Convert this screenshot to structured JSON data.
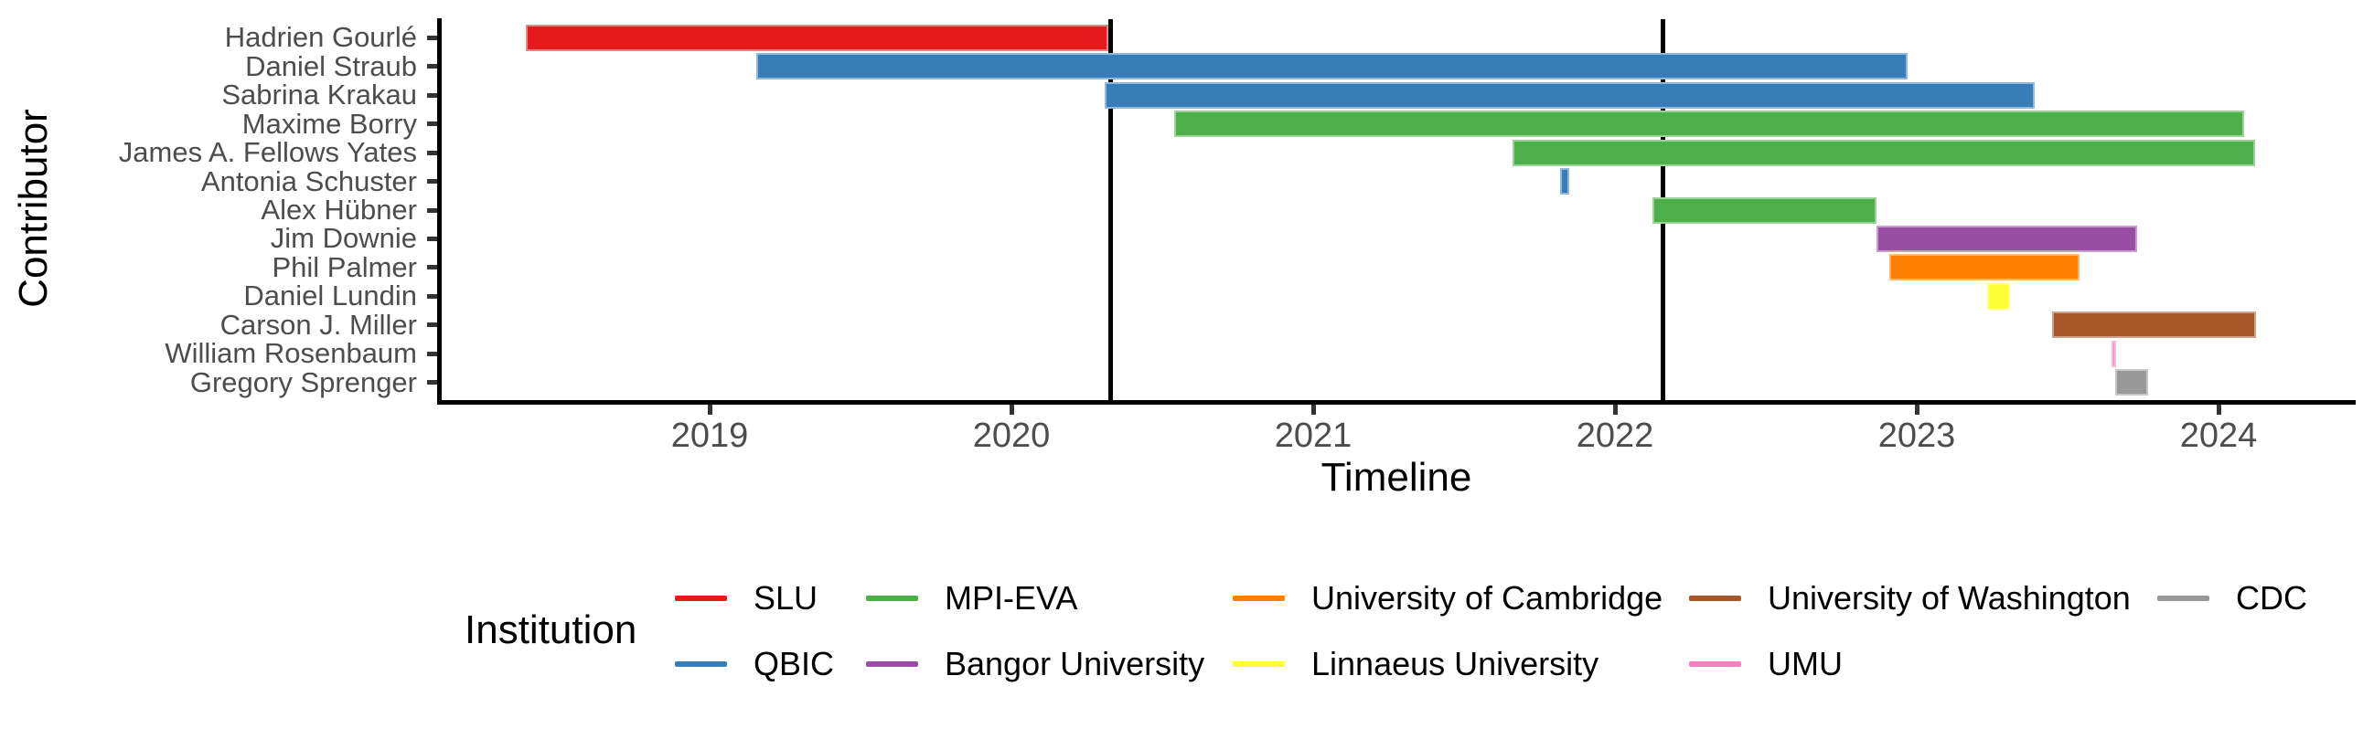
{
  "chart_data": {
    "type": "bar",
    "subtype": "gantt",
    "title": "",
    "xlabel": "Timeline",
    "ylabel": "Contributor",
    "legend_title": "Institution",
    "x_ticks": [
      2019,
      2020,
      2021,
      2022,
      2023,
      2024
    ],
    "x_range": [
      2018.1,
      2024.45
    ],
    "grid": false,
    "legend_position": "bottom",
    "event_lines": [
      2020.33,
      2022.16
    ],
    "institutions": [
      {
        "name": "SLU",
        "color": "#E41A1C"
      },
      {
        "name": "QBIC",
        "color": "#377EB8"
      },
      {
        "name": "MPI-EVA",
        "color": "#4DAF4A"
      },
      {
        "name": "Bangor University",
        "color": "#984EA3"
      },
      {
        "name": "University of Cambridge",
        "color": "#FF7F00"
      },
      {
        "name": "Linnaeus University",
        "color": "#FFFF33"
      },
      {
        "name": "University of Washington",
        "color": "#A65628"
      },
      {
        "name": "UMU",
        "color": "#F781BF"
      },
      {
        "name": "CDC",
        "color": "#999999"
      }
    ],
    "contributors": [
      {
        "name": "Hadrien Gourlé",
        "institution": "SLU",
        "start": 2018.39,
        "end": 2020.32
      },
      {
        "name": "Daniel Straub",
        "institution": "QBIC",
        "start": 2019.155,
        "end": 2022.97
      },
      {
        "name": "Sabrina Krakau",
        "institution": "QBIC",
        "start": 2020.31,
        "end": 2023.39
      },
      {
        "name": "Maxime Borry",
        "institution": "MPI-EVA",
        "start": 2020.54,
        "end": 2024.085
      },
      {
        "name": "James A. Fellows Yates",
        "institution": "MPI-EVA",
        "start": 2021.66,
        "end": 2024.12
      },
      {
        "name": "Antonia Schuster",
        "institution": "QBIC",
        "start": 2021.818,
        "end": 2021.848
      },
      {
        "name": "Alex Hübner",
        "institution": "MPI-EVA",
        "start": 2022.124,
        "end": 2022.867
      },
      {
        "name": "Jim Downie",
        "institution": "Bangor University",
        "start": 2022.867,
        "end": 2023.73
      },
      {
        "name": "Phil Palmer",
        "institution": "University of Cambridge",
        "start": 2022.91,
        "end": 2023.54
      },
      {
        "name": "Daniel Lundin",
        "institution": "Linnaeus University",
        "start": 2023.232,
        "end": 2023.31
      },
      {
        "name": "Carson J. Miller",
        "institution": "University of Washington",
        "start": 2023.448,
        "end": 2024.123
      },
      {
        "name": "William Rosenbaum",
        "institution": "UMU",
        "start": 2023.644,
        "end": 2023.661
      },
      {
        "name": "Gregory Sprenger",
        "institution": "CDC",
        "start": 2023.659,
        "end": 2023.766
      }
    ]
  }
}
